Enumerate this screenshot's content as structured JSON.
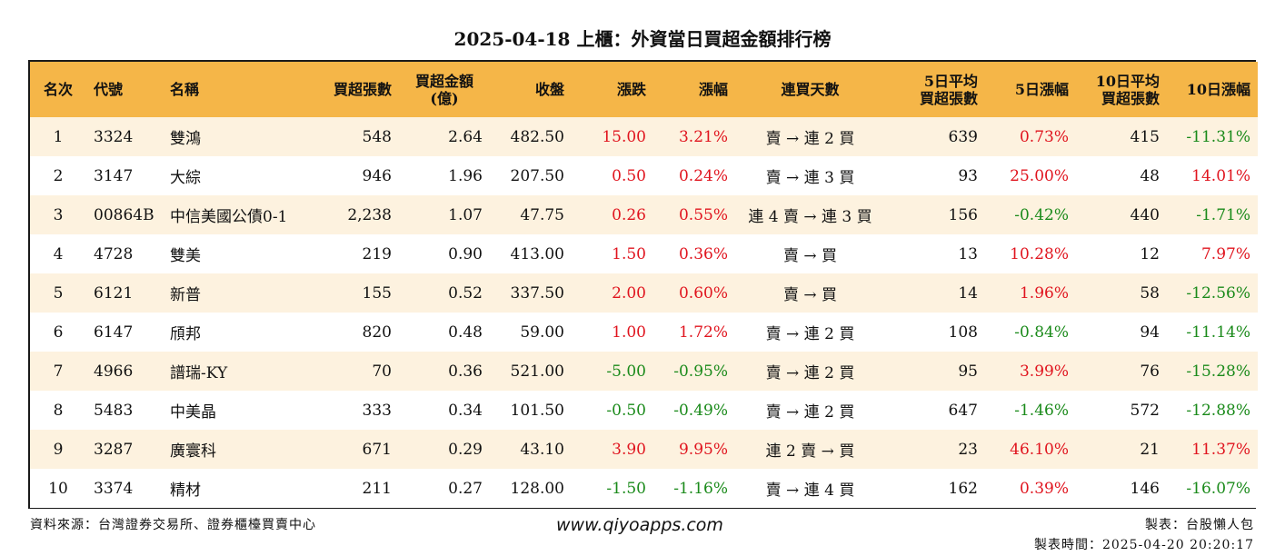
{
  "title": "2025-04-18 上櫃：外資當日買超金額排行榜",
  "columns": {
    "rank": "名次",
    "code": "代號",
    "name": "名稱",
    "buy_shares": "買超張數",
    "buy_amount_1": "買超金額",
    "buy_amount_2": "(億)",
    "close": "收盤",
    "change": "漲跌",
    "pct": "漲幅",
    "streak": "連買天數",
    "avg5_1": "5日平均",
    "avg5_2": "買超張數",
    "pct5": "5日漲幅",
    "avg10_1": "10日平均",
    "avg10_2": "買超張數",
    "pct10": "10日漲幅"
  },
  "rows": [
    {
      "rank": "1",
      "code": "3324",
      "name": "雙鴻",
      "buy_shares": "548",
      "buy_amount": "2.64",
      "close": "482.50",
      "change": "15.00",
      "pct": "3.21%",
      "streak": "賣 → 連 2 買",
      "avg5": "639",
      "pct5": "0.73%",
      "avg10": "415",
      "pct10": "-11.31%",
      "change_dir": "up",
      "pct_dir": "up",
      "pct5_dir": "up",
      "pct10_dir": "down"
    },
    {
      "rank": "2",
      "code": "3147",
      "name": "大綜",
      "buy_shares": "946",
      "buy_amount": "1.96",
      "close": "207.50",
      "change": "0.50",
      "pct": "0.24%",
      "streak": "賣 → 連 3 買",
      "avg5": "93",
      "pct5": "25.00%",
      "avg10": "48",
      "pct10": "14.01%",
      "change_dir": "up",
      "pct_dir": "up",
      "pct5_dir": "up",
      "pct10_dir": "up"
    },
    {
      "rank": "3",
      "code": "00864B",
      "name": "中信美國公債0-1",
      "buy_shares": "2,238",
      "buy_amount": "1.07",
      "close": "47.75",
      "change": "0.26",
      "pct": "0.55%",
      "streak": "連 4 賣 → 連 3 買",
      "avg5": "156",
      "pct5": "-0.42%",
      "avg10": "440",
      "pct10": "-1.71%",
      "change_dir": "up",
      "pct_dir": "up",
      "pct5_dir": "down",
      "pct10_dir": "down"
    },
    {
      "rank": "4",
      "code": "4728",
      "name": "雙美",
      "buy_shares": "219",
      "buy_amount": "0.90",
      "close": "413.00",
      "change": "1.50",
      "pct": "0.36%",
      "streak": "賣 → 買",
      "avg5": "13",
      "pct5": "10.28%",
      "avg10": "12",
      "pct10": "7.97%",
      "change_dir": "up",
      "pct_dir": "up",
      "pct5_dir": "up",
      "pct10_dir": "up"
    },
    {
      "rank": "5",
      "code": "6121",
      "name": "新普",
      "buy_shares": "155",
      "buy_amount": "0.52",
      "close": "337.50",
      "change": "2.00",
      "pct": "0.60%",
      "streak": "賣 → 買",
      "avg5": "14",
      "pct5": "1.96%",
      "avg10": "58",
      "pct10": "-12.56%",
      "change_dir": "up",
      "pct_dir": "up",
      "pct5_dir": "up",
      "pct10_dir": "down"
    },
    {
      "rank": "6",
      "code": "6147",
      "name": "頎邦",
      "buy_shares": "820",
      "buy_amount": "0.48",
      "close": "59.00",
      "change": "1.00",
      "pct": "1.72%",
      "streak": "賣 → 連 2 買",
      "avg5": "108",
      "pct5": "-0.84%",
      "avg10": "94",
      "pct10": "-11.14%",
      "change_dir": "up",
      "pct_dir": "up",
      "pct5_dir": "down",
      "pct10_dir": "down"
    },
    {
      "rank": "7",
      "code": "4966",
      "name": "譜瑞-KY",
      "buy_shares": "70",
      "buy_amount": "0.36",
      "close": "521.00",
      "change": "-5.00",
      "pct": "-0.95%",
      "streak": "賣 → 連 2 買",
      "avg5": "95",
      "pct5": "3.99%",
      "avg10": "76",
      "pct10": "-15.28%",
      "change_dir": "down",
      "pct_dir": "down",
      "pct5_dir": "up",
      "pct10_dir": "down"
    },
    {
      "rank": "8",
      "code": "5483",
      "name": "中美晶",
      "buy_shares": "333",
      "buy_amount": "0.34",
      "close": "101.50",
      "change": "-0.50",
      "pct": "-0.49%",
      "streak": "賣 → 連 2 買",
      "avg5": "647",
      "pct5": "-1.46%",
      "avg10": "572",
      "pct10": "-12.88%",
      "change_dir": "down",
      "pct_dir": "down",
      "pct5_dir": "down",
      "pct10_dir": "down"
    },
    {
      "rank": "9",
      "code": "3287",
      "name": "廣寰科",
      "buy_shares": "671",
      "buy_amount": "0.29",
      "close": "43.10",
      "change": "3.90",
      "pct": "9.95%",
      "streak": "連 2 賣 → 買",
      "avg5": "23",
      "pct5": "46.10%",
      "avg10": "21",
      "pct10": "11.37%",
      "change_dir": "up",
      "pct_dir": "up",
      "pct5_dir": "up",
      "pct10_dir": "up"
    },
    {
      "rank": "10",
      "code": "3374",
      "name": "精材",
      "buy_shares": "211",
      "buy_amount": "0.27",
      "close": "128.00",
      "change": "-1.50",
      "pct": "-1.16%",
      "streak": "賣 → 連 4 買",
      "avg5": "162",
      "pct5": "0.39%",
      "avg10": "146",
      "pct10": "-16.07%",
      "change_dir": "down",
      "pct_dir": "down",
      "pct5_dir": "up",
      "pct10_dir": "down"
    }
  ],
  "colors": {
    "header_bg": "#f5b648",
    "stripe": "#fdf2df",
    "up": "#e0141e",
    "down": "#1a8a1a"
  },
  "footer": {
    "source": "資料來源：台灣證券交易所、證券櫃檯買賣中心",
    "website": "www.qiyoapps.com",
    "maker": "製表：台股懶人包",
    "made_time": "製表時間：2025-04-20 20:20:17"
  }
}
